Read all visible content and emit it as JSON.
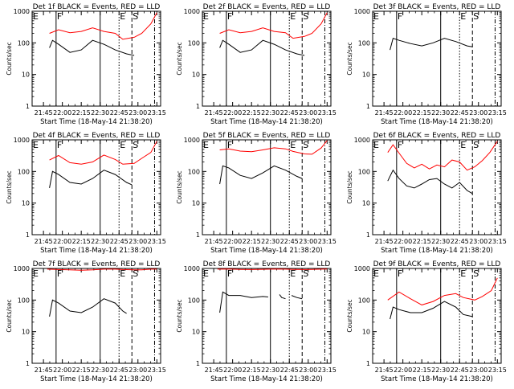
{
  "chart_data": [
    {
      "type": "line",
      "title": "Det 1f BLACK = Events, RED = LLD",
      "xlabel": "Start Time (18-May-14 21:38:20)",
      "ylabel": "Counts/sec",
      "yscale": "log",
      "ylim": [
        1,
        1000
      ],
      "xlim": [
        -0.15,
        1.55
      ],
      "x_ticks": [
        "21:45",
        "22:00",
        "22:15",
        "22:30",
        "22:45",
        "23:00",
        "23:15"
      ],
      "y_ticks": [
        "1",
        "10",
        "100",
        "1000"
      ],
      "markers": [
        {
          "x": 0.167,
          "label": "F",
          "style": "solid"
        },
        {
          "x": 1.0,
          "label": "E",
          "style": "dotted"
        },
        {
          "x": 1.17,
          "label": "S",
          "style": "dash"
        },
        {
          "x": 1.47,
          "style": "dashdot"
        }
      ],
      "extra_vlines": [
        {
          "x": 0.75,
          "style": "solid"
        }
      ],
      "series": [
        {
          "color": "#ff0000",
          "x": [
            0.08,
            0.2,
            0.35,
            0.5,
            0.65,
            0.8,
            0.95,
            1.05,
            1.2,
            1.3,
            1.42,
            1.5
          ],
          "y": [
            200,
            260,
            210,
            230,
            300,
            230,
            200,
            130,
            150,
            200,
            400,
            900
          ]
        },
        {
          "color": "#000000",
          "x": [
            0.08,
            0.12,
            0.2,
            0.35,
            0.5,
            0.65,
            0.8,
            0.95,
            1.1,
            1.2
          ],
          "y": [
            70,
            120,
            90,
            50,
            60,
            120,
            90,
            60,
            45,
            40
          ]
        }
      ]
    },
    {
      "type": "line",
      "title": "Det 2f BLACK = Events, RED = LLD",
      "xlabel": "Start Time (18-May-14 21:38:20)",
      "ylabel": "Counts/sec",
      "yscale": "log",
      "ylim": [
        1,
        1000
      ],
      "xlim": [
        -0.15,
        1.55
      ],
      "x_ticks": [
        "21:45",
        "22:00",
        "22:15",
        "22:30",
        "22:45",
        "23:00",
        "23:15"
      ],
      "y_ticks": [
        "1",
        "10",
        "100",
        "1000"
      ],
      "markers": [
        {
          "x": 0.167,
          "label": "F",
          "style": "solid"
        },
        {
          "x": 1.0,
          "label": "E",
          "style": "dotted"
        },
        {
          "x": 1.17,
          "label": "S",
          "style": "dash"
        },
        {
          "x": 1.47,
          "style": "dashdot"
        }
      ],
      "extra_vlines": [
        {
          "x": 0.75,
          "style": "solid"
        }
      ],
      "series": [
        {
          "color": "#ff0000",
          "x": [
            0.08,
            0.2,
            0.35,
            0.5,
            0.65,
            0.8,
            0.95,
            1.05,
            1.2,
            1.3,
            1.42,
            1.5
          ],
          "y": [
            200,
            260,
            210,
            230,
            300,
            230,
            210,
            140,
            160,
            200,
            400,
            900
          ]
        },
        {
          "color": "#000000",
          "x": [
            0.08,
            0.12,
            0.2,
            0.35,
            0.5,
            0.65,
            0.8,
            0.95,
            1.1,
            1.2
          ],
          "y": [
            70,
            120,
            90,
            50,
            60,
            120,
            90,
            60,
            45,
            40
          ]
        }
      ]
    },
    {
      "type": "line",
      "title": "Det 3f BLACK = Events, RED = LLD",
      "xlabel": "Start Time (18-May-14 21:38:20)",
      "ylabel": "Counts/sec",
      "yscale": "log",
      "ylim": [
        1,
        1000
      ],
      "xlim": [
        -0.15,
        1.55
      ],
      "x_ticks": [
        "21:45",
        "22:00",
        "22:15",
        "22:30",
        "22:45",
        "23:00",
        "23:15"
      ],
      "y_ticks": [
        "1",
        "10",
        "100",
        "1000"
      ],
      "markers": [
        {
          "x": 0.167,
          "label": "F",
          "style": "solid"
        },
        {
          "x": 1.0,
          "label": "E",
          "style": "dotted"
        },
        {
          "x": 1.17,
          "label": "S",
          "style": "dash"
        },
        {
          "x": 1.47,
          "style": "dashdot"
        }
      ],
      "extra_vlines": [
        {
          "x": 0.75,
          "style": "solid"
        }
      ],
      "series": [
        {
          "color": "#000000",
          "x": [
            0.08,
            0.12,
            0.2,
            0.35,
            0.5,
            0.65,
            0.8,
            0.95,
            1.1,
            1.17
          ],
          "y": [
            60,
            140,
            120,
            95,
            80,
            100,
            140,
            110,
            80,
            75
          ]
        }
      ]
    },
    {
      "type": "line",
      "title": "Det 4f BLACK = Events, RED = LLD",
      "xlabel": "Start Time (18-May-14 21:38:20)",
      "ylabel": "Counts/sec",
      "yscale": "log",
      "ylim": [
        1,
        1000
      ],
      "xlim": [
        -0.15,
        1.55
      ],
      "x_ticks": [
        "21:45",
        "22:00",
        "22:15",
        "22:30",
        "22:45",
        "23:00",
        "23:15"
      ],
      "y_ticks": [
        "1",
        "10",
        "100",
        "1000"
      ],
      "markers": [
        {
          "x": 0.167,
          "label": "F",
          "style": "solid"
        },
        {
          "x": 1.0,
          "label": "E",
          "style": "dotted"
        },
        {
          "x": 1.17,
          "label": "S",
          "style": "dash"
        },
        {
          "x": 1.47,
          "style": "dashdot"
        }
      ],
      "extra_vlines": [
        {
          "x": 0.75,
          "style": "solid"
        }
      ],
      "series": [
        {
          "color": "#ff0000",
          "x": [
            0.08,
            0.2,
            0.35,
            0.5,
            0.65,
            0.8,
            0.95,
            1.05,
            1.2,
            1.3,
            1.42,
            1.5
          ],
          "y": [
            230,
            320,
            190,
            170,
            200,
            330,
            240,
            170,
            180,
            260,
            400,
            900
          ]
        },
        {
          "color": "#000000",
          "x": [
            0.08,
            0.12,
            0.2,
            0.35,
            0.5,
            0.65,
            0.8,
            0.95,
            1.1,
            1.17
          ],
          "y": [
            30,
            100,
            80,
            45,
            40,
            60,
            110,
            80,
            45,
            38
          ]
        }
      ]
    },
    {
      "type": "line",
      "title": "Det 5f BLACK = Events, RED = LLD",
      "xlabel": "Start Time (18-May-14 21:38:20)",
      "ylabel": "Counts/sec",
      "yscale": "log",
      "ylim": [
        1,
        1000
      ],
      "xlim": [
        -0.15,
        1.55
      ],
      "x_ticks": [
        "21:45",
        "22:00",
        "22:15",
        "22:30",
        "22:45",
        "23:00",
        "23:15"
      ],
      "y_ticks": [
        "1",
        "10",
        "100",
        "1000"
      ],
      "markers": [
        {
          "x": 0.167,
          "label": "F",
          "style": "solid"
        },
        {
          "x": 1.0,
          "label": "E",
          "style": "dotted"
        },
        {
          "x": 1.17,
          "label": "S",
          "style": "dash"
        },
        {
          "x": 1.47,
          "style": "dashdot"
        }
      ],
      "extra_vlines": [
        {
          "x": 0.75,
          "style": "solid"
        }
      ],
      "series": [
        {
          "color": "#ff0000",
          "x": [
            0.08,
            0.2,
            0.35,
            0.5,
            0.65,
            0.8,
            0.95,
            1.05,
            1.2,
            1.3,
            1.42,
            1.5
          ],
          "y": [
            480,
            520,
            440,
            420,
            480,
            560,
            520,
            430,
            360,
            350,
            550,
            950
          ]
        },
        {
          "color": "#000000",
          "x": [
            0.08,
            0.12,
            0.2,
            0.35,
            0.5,
            0.65,
            0.8,
            0.95,
            1.1,
            1.17
          ],
          "y": [
            40,
            150,
            130,
            75,
            60,
            90,
            150,
            110,
            70,
            60
          ]
        }
      ]
    },
    {
      "type": "line",
      "title": "Det 6f BLACK = Events, RED = LLD",
      "xlabel": "Start Time (18-May-14 21:38:20)",
      "ylabel": "Counts/sec",
      "yscale": "log",
      "ylim": [
        1,
        1000
      ],
      "xlim": [
        -0.15,
        1.55
      ],
      "x_ticks": [
        "21:45",
        "22:00",
        "22:15",
        "22:30",
        "22:45",
        "23:00",
        "23:15"
      ],
      "y_ticks": [
        "1",
        "10",
        "100",
        "1000"
      ],
      "markers": [
        {
          "x": 0.167,
          "label": "F",
          "style": "solid"
        },
        {
          "x": 1.0,
          "label": "E",
          "style": "dotted"
        },
        {
          "x": 1.17,
          "label": "S",
          "style": "dash"
        },
        {
          "x": 1.47,
          "style": "dashdot"
        }
      ],
      "extra_vlines": [
        {
          "x": 0.75,
          "style": "solid"
        }
      ],
      "series": [
        {
          "color": "#ff0000",
          "x": [
            0.05,
            0.12,
            0.2,
            0.3,
            0.4,
            0.5,
            0.6,
            0.7,
            0.8,
            0.9,
            1.0,
            1.1,
            1.2,
            1.3,
            1.4,
            1.5
          ],
          "y": [
            400,
            700,
            380,
            180,
            130,
            170,
            120,
            160,
            140,
            230,
            200,
            110,
            140,
            220,
            400,
            900
          ]
        },
        {
          "color": "#000000",
          "x": [
            0.05,
            0.12,
            0.2,
            0.3,
            0.4,
            0.5,
            0.6,
            0.7,
            0.8,
            0.9,
            1.0,
            1.1,
            1.17
          ],
          "y": [
            50,
            110,
            60,
            35,
            30,
            40,
            55,
            60,
            40,
            30,
            45,
            25,
            20
          ]
        }
      ]
    },
    {
      "type": "line",
      "title": "Det 7f BLACK = Events, RED = LLD",
      "xlabel": "Start Time (18-May-14 21:38:20)",
      "ylabel": "Counts/sec",
      "yscale": "log",
      "ylim": [
        1,
        1000
      ],
      "xlim": [
        -0.15,
        1.55
      ],
      "x_ticks": [
        "21:45",
        "22:00",
        "22:15",
        "22:30",
        "22:45",
        "23:00",
        "23:15"
      ],
      "y_ticks": [
        "1",
        "10",
        "100",
        "1000"
      ],
      "markers": [
        {
          "x": 0.167,
          "label": "F",
          "style": "solid"
        },
        {
          "x": 1.0,
          "label": "E",
          "style": "dotted"
        },
        {
          "x": 1.17,
          "label": "S",
          "style": "dash"
        },
        {
          "x": 1.47,
          "style": "dashdot"
        }
      ],
      "extra_vlines": [
        {
          "x": 0.75,
          "style": "solid"
        }
      ],
      "series": [
        {
          "color": "#ff0000",
          "x": [
            0.05,
            0.2,
            0.35,
            0.5,
            0.65,
            0.8,
            0.95,
            1.05,
            1.2,
            1.3,
            1.42,
            1.5
          ],
          "y": [
            950,
            920,
            900,
            880,
            900,
            950,
            950,
            920,
            900,
            900,
            950,
            950
          ]
        },
        {
          "color": "#000000",
          "x": [
            0.08,
            0.12,
            0.2,
            0.35,
            0.5,
            0.65,
            0.8,
            0.95,
            1.05,
            1.1
          ],
          "y": [
            30,
            100,
            80,
            45,
            40,
            60,
            110,
            80,
            45,
            38
          ]
        }
      ]
    },
    {
      "type": "line",
      "title": "Det 8f BLACK = Events, RED = LLD",
      "xlabel": "Start Time (18-May-14 21:38:20)",
      "ylabel": "Counts/sec",
      "yscale": "log",
      "ylim": [
        1,
        1000
      ],
      "xlim": [
        -0.15,
        1.55
      ],
      "x_ticks": [
        "21:45",
        "22:00",
        "22:15",
        "22:30",
        "22:45",
        "23:00",
        "23:15"
      ],
      "y_ticks": [
        "1",
        "10",
        "100",
        "1000"
      ],
      "markers": [
        {
          "x": 0.167,
          "label": "F",
          "style": "solid"
        },
        {
          "x": 1.0,
          "label": "E",
          "style": "dotted"
        },
        {
          "x": 1.17,
          "label": "S",
          "style": "dash"
        },
        {
          "x": 1.47,
          "style": "dashdot"
        }
      ],
      "extra_vlines": [
        {
          "x": 0.75,
          "style": "solid"
        }
      ],
      "series": [
        {
          "color": "#ff0000",
          "x": [
            0.05,
            0.2,
            0.35,
            0.5,
            0.65,
            0.8,
            0.95,
            1.05,
            1.2,
            1.3,
            1.42,
            1.5
          ],
          "y": [
            950,
            960,
            930,
            920,
            940,
            960,
            950,
            930,
            920,
            930,
            950,
            960
          ]
        },
        {
          "color": "#000000",
          "x": [
            0.08,
            0.12,
            0.2,
            0.35,
            0.5,
            0.65,
            0.72
          ],
          "y": [
            40,
            180,
            140,
            140,
            120,
            130,
            125
          ]
        },
        {
          "color": "#000000",
          "x": [
            0.87,
            0.9,
            0.95
          ],
          "y": [
            150,
            120,
            110
          ]
        },
        {
          "color": "#000000",
          "x": [
            1.03,
            1.1,
            1.17
          ],
          "y": [
            140,
            120,
            110
          ]
        }
      ]
    },
    {
      "type": "line",
      "title": "Det 9f BLACK = Events, RED = LLD",
      "xlabel": "Start Time (18-May-14 21:38:20)",
      "ylabel": "Counts/sec",
      "yscale": "log",
      "ylim": [
        1,
        1000
      ],
      "xlim": [
        -0.15,
        1.55
      ],
      "x_ticks": [
        "21:45",
        "22:00",
        "22:15",
        "22:30",
        "22:45",
        "23:00",
        "23:15"
      ],
      "y_ticks": [
        "1",
        "10",
        "100",
        "1000"
      ],
      "markers": [
        {
          "x": 0.167,
          "label": "F",
          "style": "solid"
        },
        {
          "x": 1.0,
          "label": "E",
          "style": "dotted"
        },
        {
          "x": 1.17,
          "label": "S",
          "style": "dash"
        },
        {
          "x": 1.47,
          "style": "dashdot"
        }
      ],
      "extra_vlines": [
        {
          "x": 0.75,
          "style": "solid"
        }
      ],
      "series": [
        {
          "color": "#ff0000",
          "x": [
            0.05,
            0.2,
            0.35,
            0.5,
            0.65,
            0.8,
            0.95,
            1.05,
            1.2,
            1.3,
            1.42,
            1.5
          ],
          "y": [
            100,
            180,
            110,
            70,
            90,
            140,
            160,
            120,
            100,
            130,
            200,
            500
          ]
        },
        {
          "color": "#000000",
          "x": [
            0.08,
            0.12,
            0.2,
            0.35,
            0.5,
            0.65,
            0.8,
            0.95,
            1.05,
            1.17
          ],
          "y": [
            25,
            60,
            50,
            40,
            40,
            55,
            90,
            60,
            35,
            30
          ]
        }
      ]
    }
  ]
}
